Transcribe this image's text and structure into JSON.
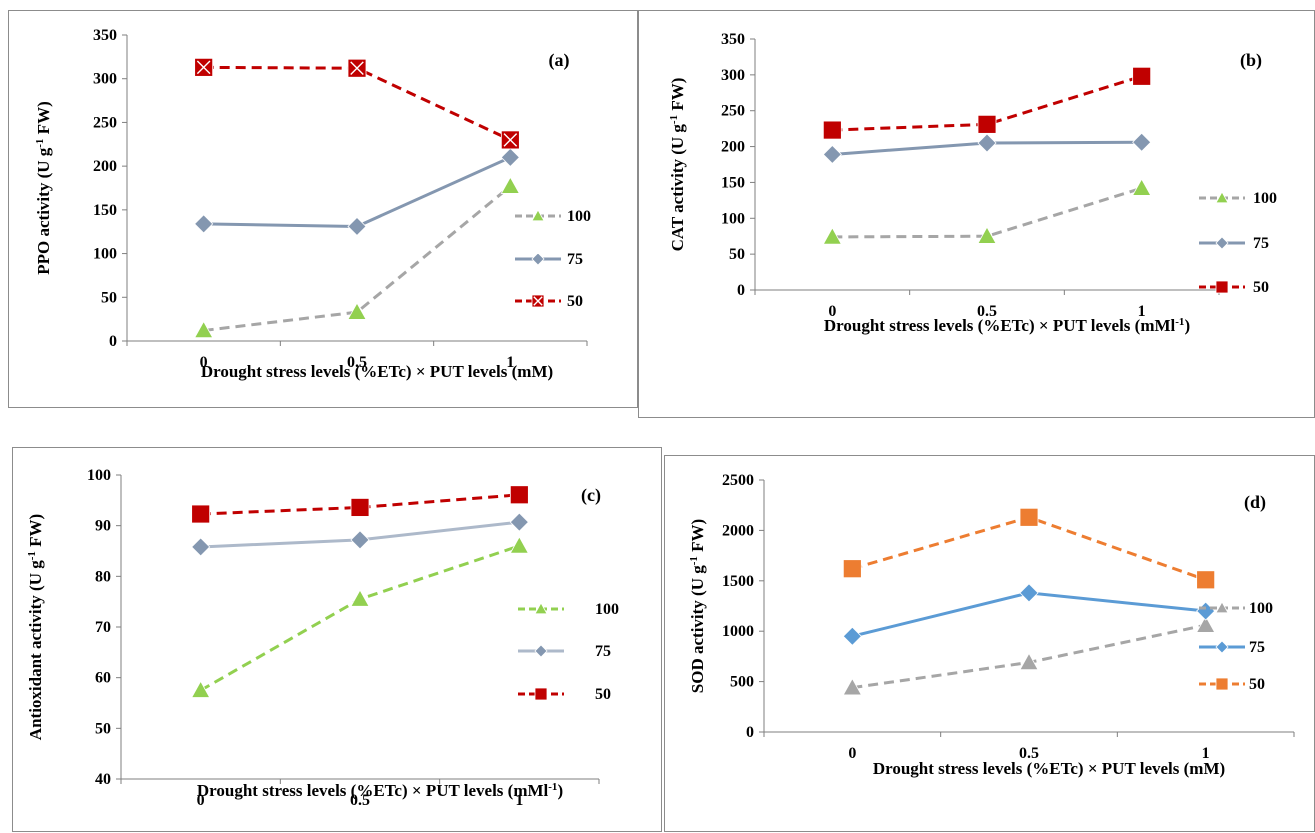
{
  "chart_data": [
    {
      "panel": "(a)",
      "type": "line",
      "categories": [
        "0",
        "0.5",
        "1"
      ],
      "ylabel": "PPO activity (U g-1 FW)",
      "xlabel": "Drought stress levels (%ETc) × PUT levels (mM)",
      "ylim": [
        0,
        350
      ],
      "yticks": [
        0,
        50,
        100,
        150,
        200,
        250,
        300,
        350
      ],
      "legend_position": "right",
      "series": [
        {
          "name": "100",
          "values": [
            12,
            33,
            177
          ],
          "color": "#a6a6a6",
          "marker": "triangle",
          "marker_color": "#92d050",
          "dash": true
        },
        {
          "name": "75",
          "values": [
            134,
            131,
            210
          ],
          "color": "#8497b0",
          "marker": "diamond",
          "marker_color": "#8497b0",
          "dash": false
        },
        {
          "name": "50",
          "values": [
            313,
            312,
            230
          ],
          "color": "#c00000",
          "marker": "square-x",
          "marker_color": "#c00000",
          "dash": true
        }
      ]
    },
    {
      "panel": "(b)",
      "type": "line",
      "categories": [
        "0",
        "0.5",
        "1"
      ],
      "ylabel": "CAT activity (U g-1 FW)",
      "xlabel": "Drought stress levels (%ETc) × PUT levels (mMl-1)",
      "ylim": [
        0,
        350
      ],
      "yticks": [
        0,
        50,
        100,
        150,
        200,
        250,
        300,
        350
      ],
      "legend_position": "right",
      "series": [
        {
          "name": "100",
          "values": [
            74,
            75,
            142
          ],
          "color": "#a6a6a6",
          "marker": "triangle",
          "marker_color": "#92d050",
          "dash": true
        },
        {
          "name": "75",
          "values": [
            189,
            205,
            206
          ],
          "color": "#8497b0",
          "marker": "diamond",
          "marker_color": "#8497b0",
          "dash": false
        },
        {
          "name": "50",
          "values": [
            223,
            231,
            298
          ],
          "color": "#c00000",
          "marker": "square",
          "marker_color": "#c00000",
          "dash": true
        }
      ]
    },
    {
      "panel": "(c)",
      "type": "line",
      "categories": [
        "0",
        "0.5",
        "1"
      ],
      "ylabel": "Antioxidant activity (U g-1 FW)",
      "xlabel": "Drought stress levels (%ETc) × PUT levels (mMl-1)",
      "ylim": [
        40,
        100
      ],
      "yticks": [
        40,
        50,
        60,
        70,
        80,
        90,
        100
      ],
      "legend_position": "right",
      "series": [
        {
          "name": "100",
          "values": [
            57.5,
            75.5,
            86
          ],
          "color": "#92d050",
          "marker": "triangle",
          "marker_color": "#92d050",
          "dash": true
        },
        {
          "name": "75",
          "values": [
            85.8,
            87.2,
            90.7
          ],
          "color": "#adb9ca",
          "marker": "diamond",
          "marker_color": "#8497b0",
          "dash": false
        },
        {
          "name": "50",
          "values": [
            92.3,
            93.6,
            96.1
          ],
          "color": "#c00000",
          "marker": "square",
          "marker_color": "#c00000",
          "dash": true
        }
      ]
    },
    {
      "panel": "(d)",
      "type": "line",
      "categories": [
        "0",
        "0.5",
        "1"
      ],
      "ylabel": "SOD activity (U g-1 FW)",
      "xlabel": "Drought stress levels (%ETc) × PUT levels (mM)",
      "ylim": [
        0,
        2500
      ],
      "yticks": [
        0,
        500,
        1000,
        1500,
        2000,
        2500
      ],
      "legend_position": "right",
      "series": [
        {
          "name": "100",
          "values": [
            440,
            690,
            1060
          ],
          "color": "#a6a6a6",
          "marker": "triangle",
          "marker_color": "#a6a6a6",
          "dash": true
        },
        {
          "name": "75",
          "values": [
            950,
            1380,
            1200
          ],
          "color": "#5b9bd5",
          "marker": "diamond",
          "marker_color": "#5b9bd5",
          "dash": false
        },
        {
          "name": "50",
          "values": [
            1620,
            2130,
            1510
          ],
          "color": "#ed7d31",
          "marker": "square",
          "marker_color": "#ed7d31",
          "dash": true
        }
      ]
    }
  ]
}
